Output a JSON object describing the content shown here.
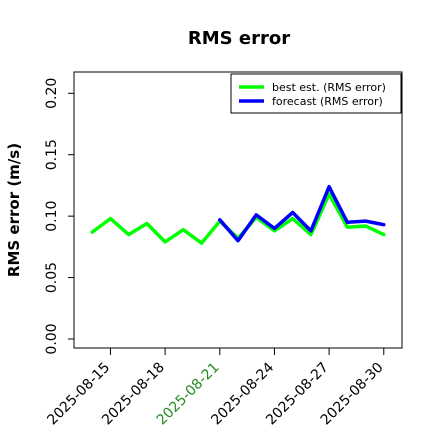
{
  "chart_data": {
    "type": "line",
    "title": "RMS error",
    "xlabel": "",
    "ylabel": "RMS error (m/s)",
    "ylim": [
      0,
      0.21
    ],
    "yticks": [
      "0.00",
      "0.05",
      "0.10",
      "0.15",
      "0.20"
    ],
    "ytick_values": [
      0,
      0.05,
      0.1,
      0.15,
      0.2
    ],
    "xlim": [
      "2025-08-13",
      "2025-08-31"
    ],
    "xticks": [
      {
        "label": "2025-08-15",
        "date": "2025-08-15",
        "color": "#000000"
      },
      {
        "label": "2025-08-18",
        "date": "2025-08-18",
        "color": "#000000"
      },
      {
        "label": "2025-08-21",
        "date": "2025-08-21",
        "color": "#228B22"
      },
      {
        "label": "2025-08-24",
        "date": "2025-08-24",
        "color": "#000000"
      },
      {
        "label": "2025-08-27",
        "date": "2025-08-27",
        "color": "#000000"
      },
      {
        "label": "2025-08-30",
        "date": "2025-08-30",
        "color": "#000000"
      }
    ],
    "legend_position": "top-right",
    "grid": false,
    "series": [
      {
        "name": "best est. (RMS error)",
        "color": "#00ff00",
        "points": [
          {
            "x": "2025-08-14",
            "y": 0.087
          },
          {
            "x": "2025-08-15",
            "y": 0.098
          },
          {
            "x": "2025-08-16",
            "y": 0.085
          },
          {
            "x": "2025-08-17",
            "y": 0.094
          },
          {
            "x": "2025-08-18",
            "y": 0.079
          },
          {
            "x": "2025-08-19",
            "y": 0.089
          },
          {
            "x": "2025-08-20",
            "y": 0.078
          },
          {
            "x": "2025-08-21",
            "y": 0.096
          },
          {
            "x": "2025-08-22",
            "y": 0.082
          },
          {
            "x": "2025-08-23",
            "y": 0.099
          },
          {
            "x": "2025-08-24",
            "y": 0.088
          },
          {
            "x": "2025-08-25",
            "y": 0.098
          },
          {
            "x": "2025-08-26",
            "y": 0.085
          },
          {
            "x": "2025-08-27",
            "y": 0.118
          },
          {
            "x": "2025-08-28",
            "y": 0.091
          },
          {
            "x": "2025-08-29",
            "y": 0.092
          },
          {
            "x": "2025-08-30",
            "y": 0.085
          }
        ]
      },
      {
        "name": "forecast (RMS error)",
        "color": "#0000ff",
        "points": [
          {
            "x": "2025-08-21",
            "y": 0.097
          },
          {
            "x": "2025-08-22",
            "y": 0.08
          },
          {
            "x": "2025-08-23",
            "y": 0.101
          },
          {
            "x": "2025-08-24",
            "y": 0.09
          },
          {
            "x": "2025-08-25",
            "y": 0.103
          },
          {
            "x": "2025-08-26",
            "y": 0.088
          },
          {
            "x": "2025-08-27",
            "y": 0.124
          },
          {
            "x": "2025-08-28",
            "y": 0.095
          },
          {
            "x": "2025-08-29",
            "y": 0.096
          },
          {
            "x": "2025-08-30",
            "y": 0.093
          }
        ]
      }
    ]
  }
}
